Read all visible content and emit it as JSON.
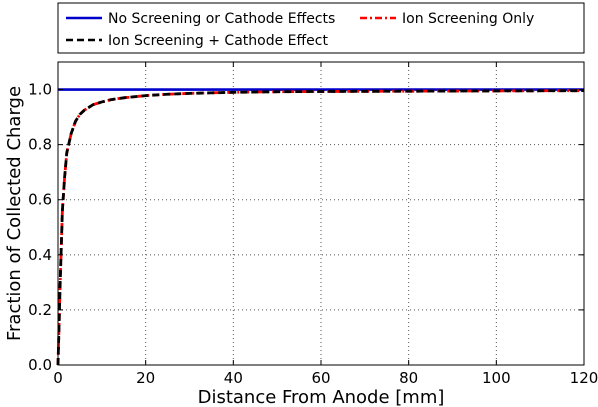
{
  "chart_data": {
    "type": "line",
    "xlabel": "Distance From Anode [mm]",
    "ylabel": "Fraction of Collected Charge",
    "xlim": [
      0,
      120
    ],
    "ylim": [
      0.0,
      1.1
    ],
    "xticks": [
      "0",
      "20",
      "40",
      "60",
      "80",
      "100",
      "120"
    ],
    "yticks": [
      "0.0",
      "0.2",
      "0.4",
      "0.6",
      "0.8",
      "1.0"
    ],
    "grid": true,
    "legend_position": "top",
    "series": [
      {
        "name": "No Screening or Cathode Effects",
        "color": "#0000cc",
        "style": "solid",
        "x": [
          0,
          120
        ],
        "y": [
          1.0,
          1.0
        ]
      },
      {
        "name": "Ion Screening + Cathode Effect",
        "color": "#000000",
        "style": "dashed",
        "x": [
          0,
          0.5,
          1,
          1.5,
          2,
          3,
          4,
          5,
          6,
          8,
          10,
          12,
          15,
          20,
          25,
          30,
          40,
          50,
          60,
          80,
          100,
          120
        ],
        "y": [
          0.0,
          0.3,
          0.56,
          0.68,
          0.77,
          0.84,
          0.885,
          0.91,
          0.925,
          0.945,
          0.955,
          0.963,
          0.97,
          0.978,
          0.983,
          0.986,
          0.99,
          0.992,
          0.993,
          0.994,
          0.995,
          0.996
        ]
      },
      {
        "name": "Ion Screening Only",
        "color": "#ff0000",
        "style": "dashdot",
        "x": [
          0,
          0.5,
          1,
          1.5,
          2,
          3,
          4,
          5,
          6,
          8,
          10,
          12,
          15,
          20,
          25,
          30,
          40,
          50,
          60,
          80,
          100,
          120
        ],
        "y": [
          0.0,
          0.3,
          0.56,
          0.68,
          0.77,
          0.84,
          0.885,
          0.91,
          0.925,
          0.945,
          0.955,
          0.963,
          0.97,
          0.978,
          0.983,
          0.986,
          0.99,
          0.992,
          0.993,
          0.994,
          0.995,
          0.996
        ]
      }
    ]
  }
}
